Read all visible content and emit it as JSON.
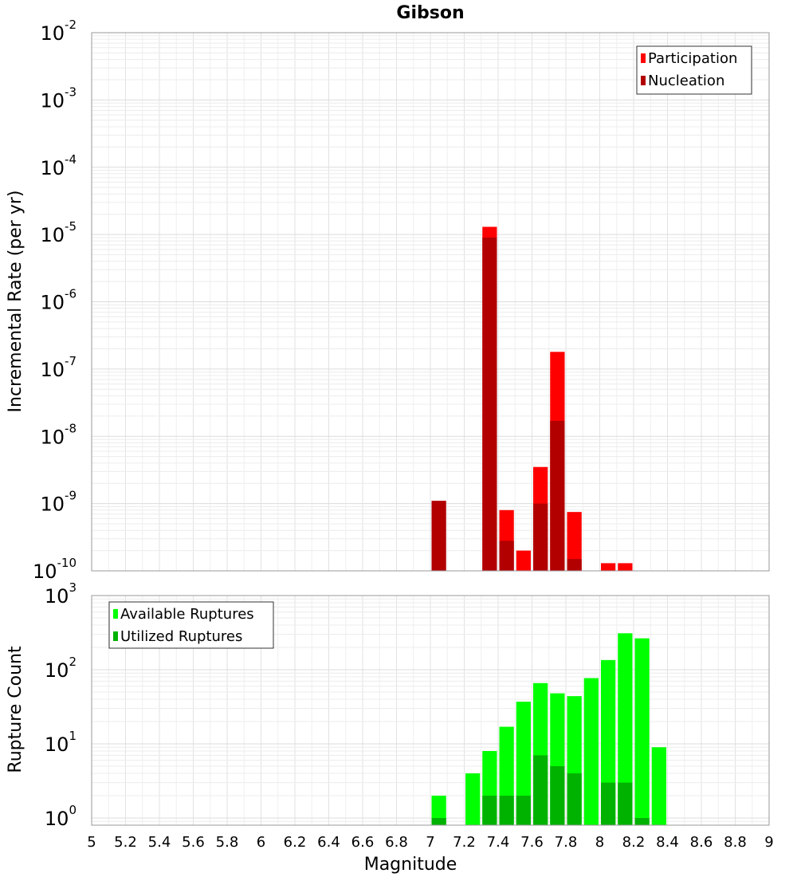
{
  "chart_data": {
    "title": "Gibson",
    "xlabel": "Magnitude",
    "xlim": [
      5,
      9
    ],
    "xticks": [
      "5",
      "5.2",
      "5.4",
      "5.6",
      "5.8",
      "6",
      "6.2",
      "6.4",
      "6.6",
      "6.8",
      "7",
      "7.2",
      "7.4",
      "7.6",
      "7.8",
      "8",
      "8.2",
      "8.4",
      "8.6",
      "8.8",
      "9"
    ],
    "bin_width": 0.1,
    "panels": [
      {
        "type": "bar",
        "yscale": "log",
        "ylabel": "Incremental Rate (per yr)",
        "ylim": [
          1e-10,
          0.01
        ],
        "yticks": [
          {
            "base": "10",
            "exp": "-2"
          },
          {
            "base": "10",
            "exp": "-3"
          },
          {
            "base": "10",
            "exp": "-4"
          },
          {
            "base": "10",
            "exp": "-5"
          },
          {
            "base": "10",
            "exp": "-6"
          },
          {
            "base": "10",
            "exp": "-7"
          },
          {
            "base": "10",
            "exp": "-8"
          },
          {
            "base": "10",
            "exp": "-9"
          },
          {
            "base": "10",
            "exp": "-10"
          }
        ],
        "legend_position": "top-right",
        "series": [
          {
            "name": "Participation",
            "color": "#ff0000",
            "x": [
              7.35,
              7.45,
              7.55,
              7.65,
              7.75,
              7.85,
              8.05,
              8.15
            ],
            "values": [
              1.3e-05,
              8e-10,
              2e-10,
              3.5e-09,
              1.8e-07,
              7.5e-10,
              1.3e-10,
              1.3e-10
            ]
          },
          {
            "name": "Nucleation",
            "color": "#b20000",
            "x": [
              7.05,
              7.35,
              7.45,
              7.65,
              7.75,
              7.85
            ],
            "values": [
              1.1e-09,
              9e-06,
              2.8e-10,
              1e-09,
              1.7e-08,
              1.5e-10
            ]
          }
        ]
      },
      {
        "type": "bar",
        "yscale": "log",
        "ylabel": "Rupture Count",
        "ylim": [
          0.8,
          1000
        ],
        "yticks": [
          {
            "base": "10",
            "exp": "3"
          },
          {
            "base": "10",
            "exp": "2"
          },
          {
            "base": "10",
            "exp": "1"
          },
          {
            "base": "10",
            "exp": "0"
          }
        ],
        "legend_position": "top-left",
        "series": [
          {
            "name": "Available Ruptures",
            "color": "#00ff00",
            "x": [
              7.05,
              7.25,
              7.35,
              7.45,
              7.55,
              7.65,
              7.75,
              7.85,
              7.95,
              8.05,
              8.15,
              8.25,
              8.35
            ],
            "values": [
              2,
              4,
              8,
              17,
              37,
              66,
              48,
              44,
              77,
              135,
              310,
              265,
              9
            ]
          },
          {
            "name": "Utilized Ruptures",
            "color": "#00b200",
            "x": [
              7.05,
              7.35,
              7.45,
              7.55,
              7.65,
              7.75,
              7.85,
              8.05,
              8.15,
              8.25
            ],
            "values": [
              1,
              2,
              2,
              2,
              7,
              5,
              4,
              3,
              3,
              1
            ]
          }
        ]
      }
    ]
  }
}
